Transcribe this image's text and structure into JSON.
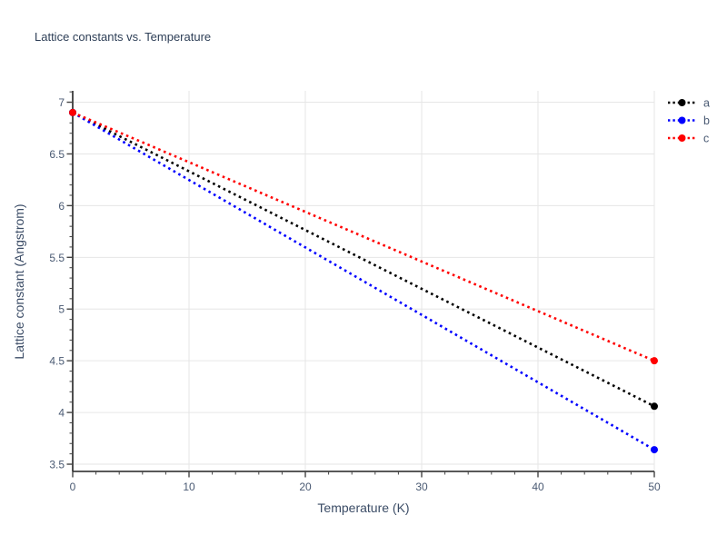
{
  "chart_data": {
    "type": "line",
    "title": "Lattice constants vs. Temperature",
    "xlabel": "Temperature (K)",
    "ylabel": "Lattice constant (Angstrom)",
    "xlim": [
      0,
      50
    ],
    "ylim": [
      3.43,
      7.11
    ],
    "x": [
      0,
      50
    ],
    "series": [
      {
        "name": "a",
        "color": "#000000",
        "values": [
          6.9,
          4.06
        ]
      },
      {
        "name": "b",
        "color": "#0000ff",
        "values": [
          6.9,
          3.64
        ]
      },
      {
        "name": "c",
        "color": "#ff0000",
        "values": [
          6.9,
          4.5
        ]
      }
    ],
    "line_style": "dotted",
    "markers": "endpoints",
    "grid": true,
    "legend_position": "outside-right",
    "x_major_ticks": [
      0,
      10,
      20,
      30,
      40,
      50
    ],
    "x_tick_labels": [
      "0",
      "10",
      "20",
      "30",
      "40",
      "50"
    ],
    "x_minor_step": 2,
    "y_major_ticks": [
      3.5,
      4,
      4.5,
      5,
      5.5,
      6,
      6.5,
      7
    ],
    "y_tick_labels": [
      "3.5",
      "4",
      "4.5",
      "5",
      "5.5",
      "6",
      "6.5",
      "7"
    ],
    "y_minor_step": 0.1,
    "colors": {
      "grid": "#e6e6e6",
      "spine": "#222222",
      "tick": "#444444",
      "tick_text": "#4a5a73",
      "title_text": "#2e3f57",
      "axis_title_text": "#3b4c66"
    }
  }
}
